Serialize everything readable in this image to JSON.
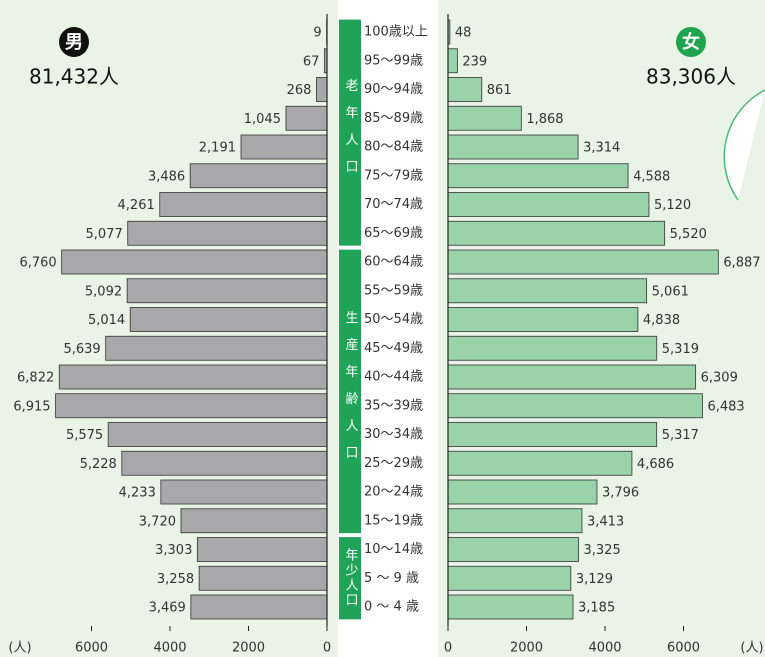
{
  "chart_data": {
    "type": "pyramid",
    "categories": [
      "100歳以上",
      "95～99歳",
      "90～94歳",
      "85～89歳",
      "80～84歳",
      "75～79歳",
      "70～74歳",
      "65～69歳",
      "60～64歳",
      "55～59歳",
      "50～54歳",
      "45～49歳",
      "40～44歳",
      "35～39歳",
      "30～34歳",
      "25～29歳",
      "20～24歳",
      "15～19歳",
      "10～14歳",
      "5 ～ 9 歳",
      "0 ～ 4 歳"
    ],
    "groups": [
      {
        "label": "老年人口",
        "count": 8
      },
      {
        "label": "生産年齢人口",
        "count": 10
      },
      {
        "label": "年少人口",
        "count": 3
      }
    ],
    "series": [
      {
        "name": "男",
        "total": "81,432人",
        "color": "#a8a8ab",
        "side": "left",
        "values": [
          9,
          67,
          268,
          1045,
          2191,
          3486,
          4261,
          5077,
          6760,
          5092,
          5014,
          5639,
          6822,
          6915,
          5575,
          5228,
          4233,
          3720,
          3303,
          3258,
          3469
        ],
        "value_labels": [
          "9",
          "67",
          "268",
          "1,045",
          "2,191",
          "3,486",
          "4,261",
          "5,077",
          "6,760",
          "5,092",
          "5,014",
          "5,639",
          "6,822",
          "6,915",
          "5,575",
          "5,228",
          "4,233",
          "3,720",
          "3,303",
          "3,258",
          "3,469"
        ]
      },
      {
        "name": "女",
        "total": "83,306人",
        "color": "#9ad2aa",
        "side": "right",
        "values": [
          48,
          239,
          861,
          1868,
          3314,
          4588,
          5120,
          5520,
          6887,
          5061,
          4838,
          5319,
          6309,
          6483,
          5317,
          4686,
          3796,
          3413,
          3325,
          3129,
          3185
        ],
        "value_labels": [
          "48",
          "239",
          "861",
          "1,868",
          "3,314",
          "4,588",
          "5,120",
          "5,520",
          "6,887",
          "5,061",
          "4,838",
          "5,319",
          "6,309",
          "6,483",
          "5,317",
          "4,686",
          "3,796",
          "3,413",
          "3,325",
          "3,129",
          "3,185"
        ]
      }
    ],
    "unit": "(人)",
    "xlim": [
      0,
      8000
    ],
    "xticks": [
      0,
      2000,
      4000,
      6000
    ]
  }
}
